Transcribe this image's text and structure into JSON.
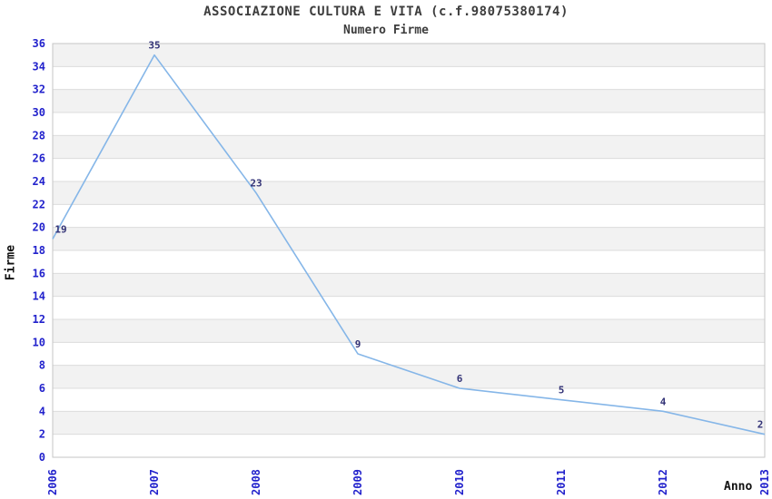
{
  "chart_data": {
    "type": "line",
    "title": "ASSOCIAZIONE CULTURA E VITA (c.f.98075380174)",
    "subtitle": "Numero Firme",
    "xlabel": "Anno",
    "ylabel": "Firme",
    "categories": [
      "2006",
      "2007",
      "2008",
      "2009",
      "2010",
      "2011",
      "2012",
      "2013"
    ],
    "values": [
      19,
      35,
      23,
      9,
      6,
      5,
      4,
      2
    ],
    "ylim": [
      0,
      36
    ],
    "ytick_step": 2,
    "grid": "horizontal-bands-alternating",
    "legend": "none",
    "colors": {
      "line": "#85b6e8",
      "tick_label": "#2222cc",
      "point_label": "#333377",
      "band_fill": "#f2f2f2",
      "gridline": "#dcdcdc",
      "plot_border": "#c6c6c6",
      "title_text": "#3d3d3d",
      "axis_label_text": "#111111",
      "background": "#ffffff"
    }
  }
}
